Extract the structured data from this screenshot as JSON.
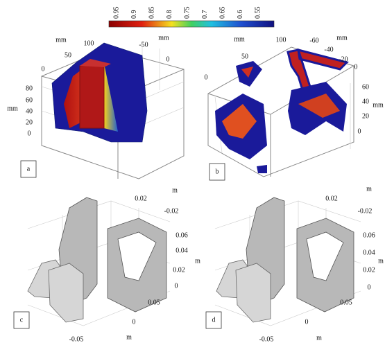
{
  "colorbar": {
    "ticks": [
      "0.95",
      "0.9",
      "0.85",
      "0.8",
      "0.75",
      "0.7",
      "0.65",
      "0.6",
      "0.55"
    ]
  },
  "panels": [
    {
      "label": "a",
      "axis_labels": [
        "mm",
        "100",
        "50",
        "0",
        "-50",
        "mm",
        "0",
        "80",
        "60",
        "40",
        "mm",
        "20",
        "0"
      ]
    },
    {
      "label": "b",
      "axis_labels": [
        "mm",
        "100",
        "50",
        "0",
        "-60",
        "mm",
        "-40",
        "-20",
        "0",
        "60",
        "40",
        "mm",
        "20",
        "0"
      ]
    },
    {
      "label": "c",
      "axis_labels": [
        "m",
        "0.02",
        "-0.02",
        "0.06",
        "0.04",
        "m",
        "0.02",
        "0",
        "0.05",
        "0",
        "m",
        "-0.05"
      ]
    },
    {
      "label": "d",
      "axis_labels": [
        "m",
        "0.02",
        "-0.02",
        "0.06",
        "0.04",
        "m",
        "0.02",
        "0",
        "0.05",
        "0",
        "m",
        "-0.05"
      ]
    }
  ]
}
